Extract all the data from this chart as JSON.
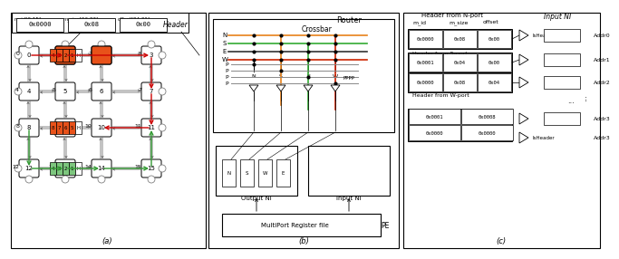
{
  "title_a": "(a)",
  "title_b": "(b)",
  "title_c": "(c)",
  "bg_color": "#ffffff",
  "node_color": "#ffffff",
  "node_edge": "#000000",
  "red_fill": "#e8521a",
  "green_fill": "#7dc67e",
  "arrow_red": "#cc0000",
  "arrow_green": "#339933",
  "arrow_gray": "#888888",
  "crossbar_orange": "#e8821a",
  "crossbar_green": "#33aa33",
  "crossbar_red": "#cc2200",
  "header_text": "m_id[0:15] m_size[16:23] offset[24:31]",
  "header_vals": [
    "0x0000",
    "0x08",
    "0x00"
  ],
  "header_label": "Header"
}
